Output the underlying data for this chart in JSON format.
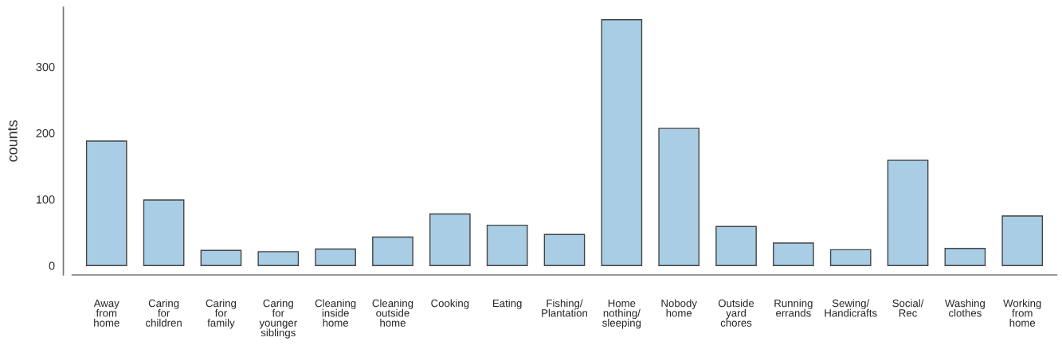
{
  "chart_data": {
    "type": "bar",
    "ylabel": "counts",
    "categories": [
      "Away\nfrom\nhome",
      "Caring\nfor\nchildren",
      "Caring\nfor\nfamily",
      "Caring\nfor\nyounger\nsiblings",
      "Cleaning\ninside\nhome",
      "Cleaning\noutside\nhome",
      "Cooking",
      "Eating",
      "Fishing/\nPlantation",
      "Home\nnothing/\nsleeping",
      "Nobody\nhome",
      "Outside\nyard\nchores",
      "Running\nerrands",
      "Sewing/\nHandicrafts",
      "Social/\nRec",
      "Washing\nclothes",
      "Working\nfrom\nhome"
    ],
    "values": [
      188,
      99,
      23,
      21,
      25,
      43,
      78,
      61,
      47,
      371,
      207,
      59,
      34,
      24,
      159,
      26,
      75
    ],
    "color": "#a8cde4",
    "ylim": [
      -14,
      390
    ],
    "yticks": [
      0,
      100,
      200,
      300
    ],
    "grid": false,
    "legend": false
  }
}
